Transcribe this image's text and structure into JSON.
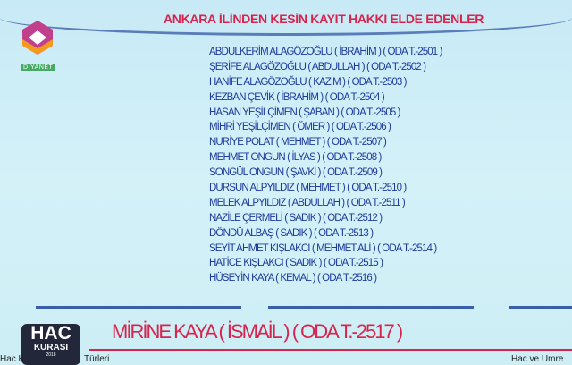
{
  "channel": {
    "logo": "DİYANET",
    "logo_icon": "diyanet-hexagon-logo"
  },
  "title": "ANKARA İLİNDEN KESİN KAYIT HAKKI ELDE EDENLER",
  "entries": [
    "ABDULKERİM ALAGÖZOĞLU ( İBRAHİM )  ( ODA T.-2501 )",
    "ŞERİFE ALAGÖZOĞLU ( ABDULLAH )  ( ODA T.-2502 )",
    "HANİFE ALAGÖZOĞLU ( KAZIM )  ( ODA T.-2503 )",
    "KEZBAN ÇEVİK ( İBRAHİM )  ( ODA T.-2504 )",
    "HASAN YEŞİLÇİMEN ( ŞABAN )  ( ODA T.-2505 )",
    "MİHRİ YEŞİLÇİMEN ( ÖMER )  ( ODA T.-2506 )",
    "NURİYE POLAT ( MEHMET )  ( ODA T.-2507 )",
    "MEHMET ONGUN ( İLYAS )  ( ODA T.-2508 )",
    "SONGÜL ONGUN ( ŞAVKİ )  ( ODA T.-2509 )",
    "DURSUN ALPYILDIZ ( MEHMET )  ( ODA T.-2510 )",
    "MELEK ALPYILDIZ ( ABDULLAH )  ( ODA T.-2511 )",
    "NAZİLE ÇERMELİ ( SADIK )  ( ODA T.-2512 )",
    "DÖNDÜ ALBAŞ ( SADIK )  ( ODA T.-2513 )",
    "SEYİT AHMET KIŞLAKCI ( MEHMET ALİ )  ( ODA T.-2514 )",
    "HATİCE KIŞLAKCI ( SADIK )  ( ODA T.-2515 )",
    "HÜSEYİN KAYA ( KEMAL )  ( ODA T.-2516 )"
  ],
  "highlight": "MİRİNE KAYA ( İSMAİL )  ( ODA T.-2517 )",
  "program_badge": {
    "line1": "HAC",
    "line2": "KURASI",
    "line3": "2018"
  },
  "ticker": {
    "left": "Hac K",
    "left_rest": "Türleri",
    "right": "Hac ve Umre"
  },
  "colors": {
    "title": "#d8234e",
    "list": "#1d3a9c",
    "background": "#cdeef5"
  }
}
